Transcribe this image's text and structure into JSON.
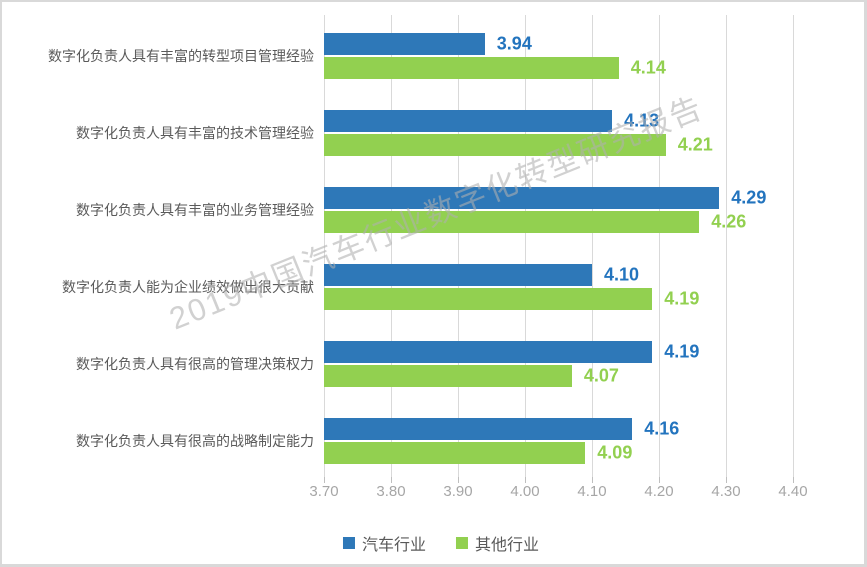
{
  "chart_data": {
    "type": "bar",
    "orientation": "horizontal",
    "title": "",
    "xlabel": "",
    "ylabel": "",
    "categories": [
      "数字化负责人具有丰富的转型项目管理经验",
      "数字化负责人具有丰富的技术管理经验",
      "数字化负责人具有丰富的业务管理经验",
      "数字化负责人能为企业绩效做出很大贡献",
      "数字化负责人具有很高的管理决策权力",
      "数字化负责人具有很高的战略制定能力"
    ],
    "series": [
      {
        "name": "汽车行业",
        "color": "#2e78b8",
        "label_color": "#2374be",
        "values": [
          3.94,
          4.13,
          4.29,
          4.1,
          4.19,
          4.16
        ]
      },
      {
        "name": "其他行业",
        "color": "#92d050",
        "label_color": "#92d050",
        "values": [
          4.14,
          4.21,
          4.26,
          4.19,
          4.07,
          4.09
        ]
      }
    ],
    "xlim": [
      3.7,
      4.4
    ],
    "x_ticks": [
      "3.70",
      "3.80",
      "3.90",
      "4.00",
      "4.10",
      "4.20",
      "4.30",
      "4.40"
    ],
    "grid": true,
    "legend_position": "bottom",
    "data_labels": true
  },
  "watermark": {
    "text": "2019中国汽车行业数字化转型研究报告"
  },
  "colors": {
    "series_auto": "#2e78b8",
    "series_other": "#92d050",
    "gridline": "#d9d9d9",
    "axis_text": "#a6a6a6",
    "category_text": "#5a5a5a",
    "frame_border": "#d9d9d9"
  }
}
